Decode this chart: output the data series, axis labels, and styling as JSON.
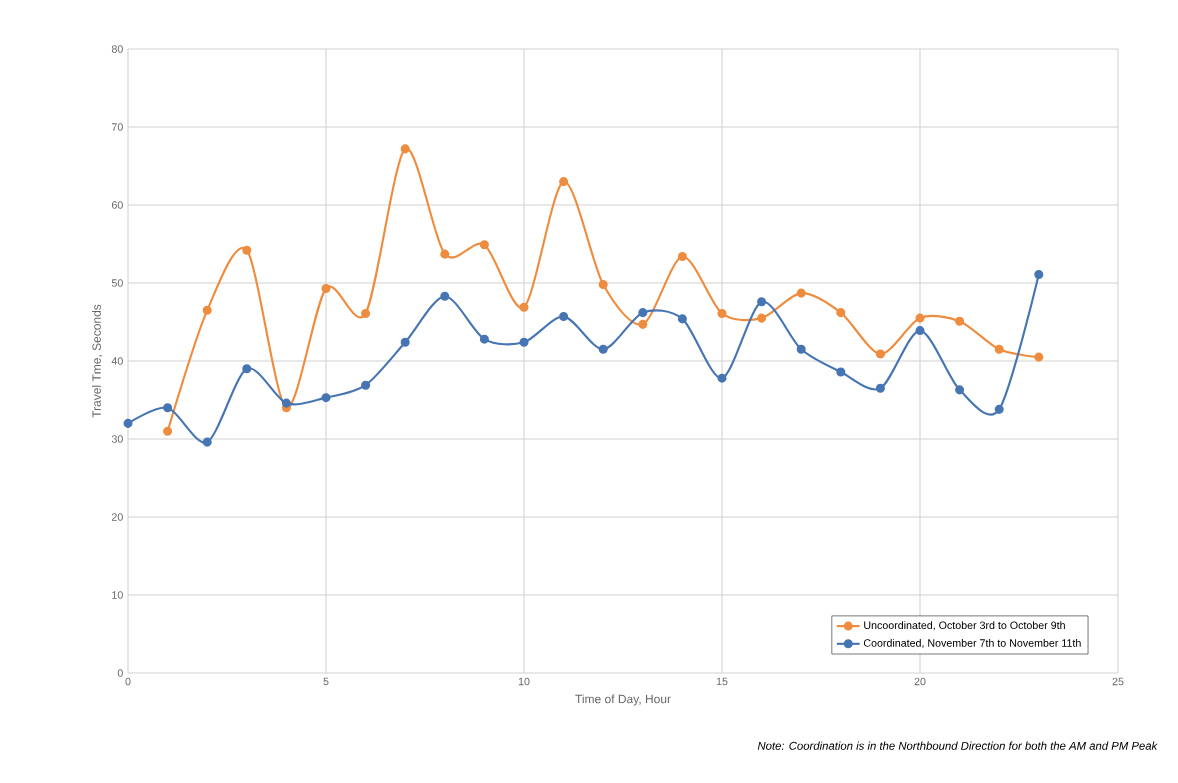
{
  "chart_data": {
    "type": "line",
    "xlabel": "Time of Day, Hour",
    "ylabel": "Travel Tme, Seconds",
    "annotations": [
      "Note: Coordination is in the Northbound Direction for both the AM and PM Peak"
    ],
    "xlim": [
      0,
      25
    ],
    "xticks": [
      0,
      5,
      10,
      15,
      20,
      25
    ],
    "ylim": [
      0,
      80
    ],
    "yticks": [
      0,
      10,
      20,
      30,
      40,
      50,
      60,
      70,
      80
    ],
    "grid": true,
    "legend": "bottom right",
    "marker": "circle",
    "line_style": "solid",
    "series": [
      {
        "name": "Uncoordinated, October 3rd to October 9th",
        "color": "#ee8c3f",
        "x": [
          1,
          2,
          3,
          4,
          5,
          6,
          7,
          8,
          9,
          10,
          11,
          12,
          13,
          14,
          15,
          16,
          17,
          18,
          19,
          20,
          21,
          22,
          23
        ],
        "values": [
          31.0,
          46.5,
          54.2,
          34.0,
          49.3,
          46.1,
          67.2,
          53.7,
          54.9,
          46.9,
          63.0,
          49.8,
          44.7,
          53.4,
          46.1,
          45.5,
          48.7,
          46.2,
          40.9,
          45.5,
          45.1,
          41.5,
          40.5
        ]
      },
      {
        "name": "Coordinated, November 7th to November 11th",
        "color": "#4775b3",
        "x": [
          0,
          1,
          2,
          3,
          4,
          5,
          6,
          7,
          8,
          9,
          10,
          11,
          12,
          13,
          14,
          15,
          16,
          17,
          18,
          19,
          20,
          21,
          22,
          23
        ],
        "values": [
          32.0,
          34.0,
          29.6,
          39.0,
          34.6,
          35.3,
          36.9,
          42.4,
          48.3,
          42.8,
          42.4,
          45.7,
          41.5,
          46.2,
          45.4,
          37.8,
          47.6,
          41.5,
          38.6,
          36.5,
          43.9,
          36.3,
          33.8,
          51.1
        ]
      }
    ]
  }
}
